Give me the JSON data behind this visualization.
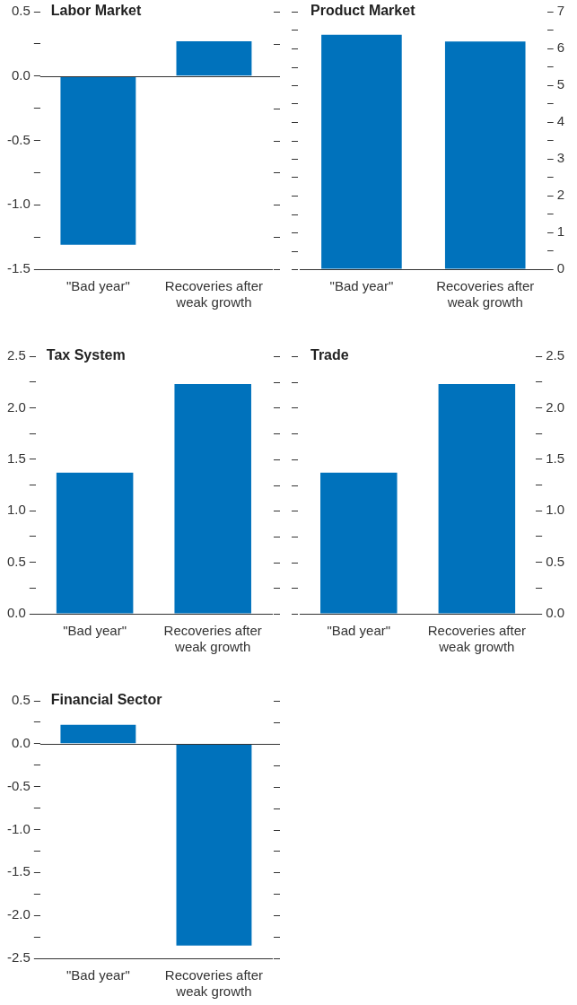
{
  "chart_data": [
    {
      "type": "bar",
      "title": "Labor Market",
      "categories": [
        "\"Bad year\"",
        "Recoveries after weak growth"
      ],
      "series": [
        {
          "color": "#0072bc",
          "values": [
            -1.31,
            0.27
          ]
        }
      ],
      "ylim": [
        -1.5,
        0.5
      ],
      "yticks": [
        {
          "value": -1.5,
          "label": "-1.5"
        },
        {
          "value": -1.25,
          "label": null
        },
        {
          "value": -1,
          "label": "-1.0"
        },
        {
          "value": -0.75,
          "label": null
        },
        {
          "value": -0.5,
          "label": "-0.5"
        },
        {
          "value": -0.25,
          "label": null
        },
        {
          "value": 0,
          "label": "0.0"
        },
        {
          "value": 0.25,
          "label": null
        },
        {
          "value": 0.5,
          "label": "0.5"
        }
      ],
      "ref_lines": [
        {
          "axis": "y",
          "value": 0
        }
      ]
    },
    {
      "type": "bar",
      "title": "Product Market",
      "categories": [
        "\"Bad year\"",
        "Recoveries after weak growth"
      ],
      "series": [
        {
          "color": "#0072bc",
          "values": [
            6.37,
            6.19
          ],
          "axis": "y2"
        }
      ],
      "y2lim": [
        0,
        7
      ],
      "y2ticks": [
        0,
        {
          "value": 0.5,
          "label": null
        },
        1,
        {
          "value": 1.5,
          "label": null
        },
        2,
        {
          "value": 2.5,
          "label": null
        },
        3,
        {
          "value": 3.5,
          "label": null
        },
        4,
        {
          "value": 4.5,
          "label": null
        },
        5,
        {
          "value": 5.5,
          "label": null
        },
        6,
        {
          "value": 6.5,
          "label": null
        },
        7
      ]
    },
    {
      "type": "bar",
      "title": "Tax System",
      "categories": [
        "\"Bad year\"",
        "Recoveries after weak growth"
      ],
      "series": [
        {
          "color": "#0072bc",
          "values": [
            1.37,
            2.23
          ]
        }
      ],
      "ylim": [
        0,
        2.5
      ],
      "yticks": [
        {
          "value": 0,
          "label": "0.0"
        },
        {
          "value": 0.25,
          "label": null
        },
        0.5,
        {
          "value": 0.75,
          "label": null
        },
        {
          "value": 1,
          "label": "1.0"
        },
        {
          "value": 1.25,
          "label": null
        },
        1.5,
        {
          "value": 1.75,
          "label": null
        },
        {
          "value": 2,
          "label": "2.0"
        },
        {
          "value": 2.25,
          "label": null
        },
        2.5
      ]
    },
    {
      "type": "bar",
      "title": "Trade",
      "categories": [
        "\"Bad year\"",
        "Recoveries after weak growth"
      ],
      "series": [
        {
          "color": "#0072bc",
          "values": [
            1.37,
            2.23
          ],
          "axis": "y2"
        }
      ],
      "y2lim": [
        0,
        2.5
      ],
      "y2ticks": [
        {
          "value": 0,
          "label": "0.0"
        },
        {
          "value": 0.25,
          "label": null
        },
        0.5,
        {
          "value": 0.75,
          "label": null
        },
        {
          "value": 1,
          "label": "1.0"
        },
        {
          "value": 1.25,
          "label": null
        },
        1.5,
        {
          "value": 1.75,
          "label": null
        },
        {
          "value": 2,
          "label": "2.0"
        },
        {
          "value": 2.25,
          "label": null
        },
        2.5
      ]
    },
    {
      "type": "bar",
      "title": "Financial Sector",
      "categories": [
        "\"Bad year\"",
        "Recoveries after weak growth"
      ],
      "series": [
        {
          "color": "#0072bc",
          "values": [
            0.22,
            -2.35
          ]
        }
      ],
      "ylim": [
        -2.5,
        0.5
      ],
      "yticks": [
        {
          "value": -2.5,
          "label": "-2.5"
        },
        {
          "value": -2.25,
          "label": null
        },
        {
          "value": -2,
          "label": "-2.0"
        },
        {
          "value": -1.75,
          "label": null
        },
        {
          "value": -1.5,
          "label": "-1.5"
        },
        {
          "value": -1.25,
          "label": null
        },
        {
          "value": -1,
          "label": "-1.0"
        },
        {
          "value": -0.75,
          "label": null
        },
        {
          "value": -0.5,
          "label": "-0.5"
        },
        {
          "value": -0.25,
          "label": null
        },
        {
          "value": 0,
          "label": "0.0"
        },
        {
          "value": 0.25,
          "label": null
        },
        {
          "value": 0.5,
          "label": "0.5"
        }
      ],
      "ref_lines": [
        {
          "axis": "y",
          "value": 0
        }
      ]
    }
  ]
}
